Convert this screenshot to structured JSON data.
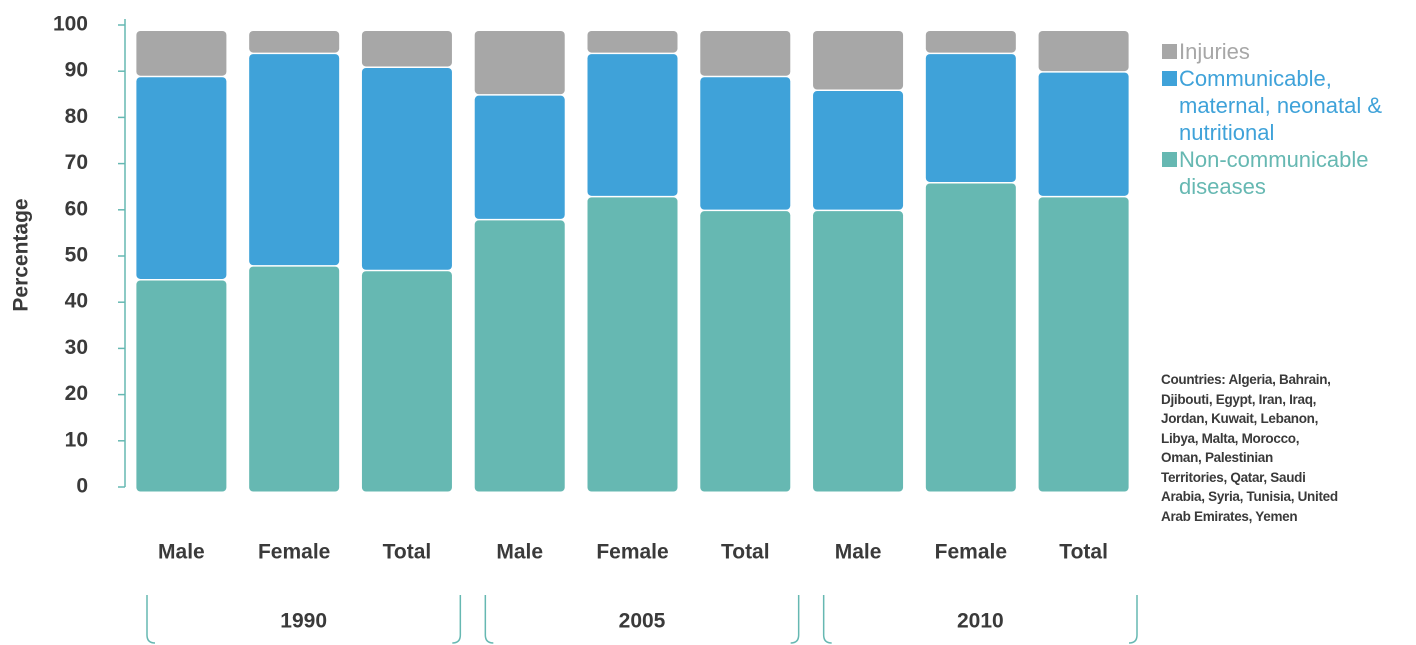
{
  "chart_data": {
    "type": "stacked-bar",
    "y_label": "Percentage",
    "categories": [
      "Male",
      "Female",
      "Total",
      "Male",
      "Female",
      "Total",
      "Male",
      "Female",
      "Total"
    ],
    "groups": [
      "1990",
      "2005",
      "2010"
    ],
    "series": [
      {
        "name": "Non-communicable diseases",
        "color": "#66b8b2",
        "values": [
          46,
          49,
          48,
          59,
          64,
          61,
          61,
          67,
          64
        ]
      },
      {
        "name": "Communicable, maternal, neonatal & nutritional",
        "color": "#3fa2d9",
        "values": [
          44,
          46,
          44,
          27,
          31,
          29,
          26,
          28,
          27
        ]
      },
      {
        "name": "Injuries",
        "color": "#a7a7a7",
        "values": [
          10,
          5,
          8,
          14,
          5,
          10,
          13,
          5,
          9
        ]
      }
    ],
    "ylim": [
      0,
      100
    ],
    "yticks": [
      0,
      10,
      20,
      30,
      40,
      50,
      60,
      70,
      80,
      90,
      100
    ],
    "axis_color": "#66b8b2",
    "note": "Countries: Algeria, Bahrain, Djibouti, Egypt, Iran, Iraq, Jordan, Kuwait, Lebanon, Libya, Malta, Morocco, Oman, Palestinian Territories, Qatar, Saudi Arabia, Syria, Tunisia, United Arab Emirates, Yemen"
  }
}
